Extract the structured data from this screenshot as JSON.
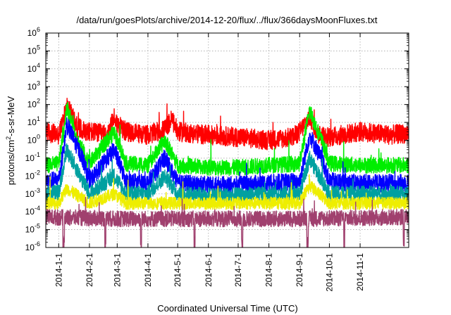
{
  "chart_data": {
    "type": "line",
    "title": "/data/run/goesPlots/archive/2014-12-20/flux/../flux/366daysMoonFluxes.txt",
    "xlabel": "Coordinated Universal Time (UTC)",
    "ylabel": "protons/cm2-s-sr-MeV",
    "ylabel_parts": {
      "before": "protons/cm",
      "sup": "2",
      "after": "-s-sr-MeV"
    },
    "yscale": "log",
    "ylim": [
      1e-06,
      1000000.0
    ],
    "y_ticks": [
      {
        "value": 1e-06,
        "base": "10",
        "exp": "-6"
      },
      {
        "value": 1e-05,
        "base": "10",
        "exp": "-5"
      },
      {
        "value": 0.0001,
        "base": "10",
        "exp": "-4"
      },
      {
        "value": 0.001,
        "base": "10",
        "exp": "-3"
      },
      {
        "value": 0.01,
        "base": "10",
        "exp": "-2"
      },
      {
        "value": 0.1,
        "base": "10",
        "exp": "-1"
      },
      {
        "value": 1,
        "base": "10",
        "exp": "0"
      },
      {
        "value": 10,
        "base": "10",
        "exp": "1"
      },
      {
        "value": 100,
        "base": "10",
        "exp": "2"
      },
      {
        "value": 1000,
        "base": "10",
        "exp": "3"
      },
      {
        "value": 10000,
        "base": "10",
        "exp": "4"
      },
      {
        "value": 100000,
        "base": "10",
        "exp": "5"
      },
      {
        "value": 1000000,
        "base": "10",
        "exp": "6"
      }
    ],
    "xlim": [
      "2013-12-19",
      "2014-12-20"
    ],
    "x_ticks": [
      "2014-1-1",
      "2014-2-1",
      "2014-3-1",
      "2014-4-1",
      "2014-5-1",
      "2014-6-1",
      "2014-7-1",
      "2014-8-1",
      "2014-9-1",
      "2014-10-1",
      "2014-11-1"
    ],
    "grid": true,
    "legend": "none",
    "colors": {
      "red": "#ff0000",
      "green": "#00ee00",
      "blue": "#0000ff",
      "teal": "#00a0a0",
      "yellow": "#eeee00",
      "maroon": "#a0406e"
    },
    "series": [
      {
        "color": "#ff0000",
        "base": 1.5,
        "x": [
          "2013-12-19",
          "2014-01-01",
          "2014-01-06",
          "2014-01-09",
          "2014-01-20",
          "2014-02-01",
          "2014-02-20",
          "2014-02-26",
          "2014-03-01",
          "2014-03-10",
          "2014-04-01",
          "2014-04-18",
          "2014-04-25",
          "2014-05-01",
          "2014-06-01",
          "2014-07-01",
          "2014-08-01",
          "2014-08-25",
          "2014-09-01",
          "2014-09-11",
          "2014-09-20",
          "2014-10-01",
          "2014-11-01",
          "2014-12-01",
          "2014-12-20"
        ],
        "y": [
          3.0,
          2.0,
          15,
          100,
          5.0,
          3.0,
          2.0,
          20,
          8.0,
          3.0,
          2.0,
          4.0,
          15,
          3.0,
          2.0,
          1.5,
          1.0,
          1.5,
          3.0,
          20,
          2.0,
          1.5,
          3.0,
          2.0,
          2.5
        ]
      },
      {
        "color": "#00ee00",
        "base": 0.04,
        "x": [
          "2013-12-19",
          "2014-01-01",
          "2014-01-06",
          "2014-01-09",
          "2014-01-20",
          "2014-02-01",
          "2014-02-26",
          "2014-03-10",
          "2014-04-01",
          "2014-04-18",
          "2014-05-01",
          "2014-06-01",
          "2014-07-01",
          "2014-08-01",
          "2014-09-01",
          "2014-09-11",
          "2014-09-25",
          "2014-10-01",
          "2014-11-01",
          "2014-12-20"
        ],
        "y": [
          0.04,
          0.05,
          3.0,
          80,
          1.0,
          0.05,
          3.0,
          0.05,
          0.04,
          1.0,
          0.04,
          0.03,
          0.03,
          0.04,
          0.05,
          50,
          0.5,
          0.05,
          0.04,
          0.04
        ]
      },
      {
        "color": "#0000ff",
        "base": 0.005,
        "x": [
          "2013-12-19",
          "2014-01-01",
          "2014-01-06",
          "2014-01-09",
          "2014-01-25",
          "2014-02-01",
          "2014-02-26",
          "2014-03-10",
          "2014-04-01",
          "2014-04-18",
          "2014-05-01",
          "2014-06-01",
          "2014-07-01",
          "2014-08-01",
          "2014-09-01",
          "2014-09-11",
          "2014-09-25",
          "2014-10-01",
          "2014-11-01",
          "2014-12-20"
        ],
        "y": [
          0.005,
          0.006,
          0.3,
          8.0,
          0.1,
          0.005,
          0.3,
          0.005,
          0.004,
          0.1,
          0.004,
          0.003,
          0.003,
          0.004,
          0.005,
          2.0,
          0.05,
          0.005,
          0.004,
          0.004
        ]
      },
      {
        "color": "#00a0a0",
        "base": 0.001,
        "x": [
          "2013-12-19",
          "2014-01-01",
          "2014-01-09",
          "2014-02-01",
          "2014-02-26",
          "2014-03-10",
          "2014-04-01",
          "2014-04-18",
          "2014-05-01",
          "2014-06-01",
          "2014-07-01",
          "2014-08-01",
          "2014-09-01",
          "2014-09-11",
          "2014-10-01",
          "2014-11-01",
          "2014-12-20"
        ],
        "y": [
          0.001,
          0.0012,
          0.3,
          0.001,
          0.01,
          0.001,
          0.001,
          0.01,
          0.001,
          0.0008,
          0.0008,
          0.001,
          0.001,
          0.1,
          0.001,
          0.001,
          0.001
        ]
      },
      {
        "color": "#eeee00",
        "base": 0.0003,
        "x": [
          "2013-12-19",
          "2014-01-01",
          "2014-01-09",
          "2014-02-01",
          "2014-02-26",
          "2014-03-10",
          "2014-04-01",
          "2014-05-01",
          "2014-06-01",
          "2014-07-01",
          "2014-08-01",
          "2014-09-01",
          "2014-09-11",
          "2014-10-01",
          "2014-11-01",
          "2014-12-20"
        ],
        "y": [
          0.0003,
          0.0003,
          0.002,
          0.0003,
          0.001,
          0.0003,
          0.0003,
          0.0003,
          0.0003,
          0.0003,
          0.0003,
          0.0003,
          0.003,
          0.0003,
          0.0003,
          0.0003
        ]
      },
      {
        "color": "#a0406e",
        "base": 5e-05,
        "x": [
          "2013-12-19",
          "2014-03-01",
          "2014-06-01",
          "2014-09-01",
          "2014-12-20"
        ],
        "y": [
          5e-05,
          4e-05,
          4e-05,
          4e-05,
          5e-05
        ]
      }
    ]
  }
}
